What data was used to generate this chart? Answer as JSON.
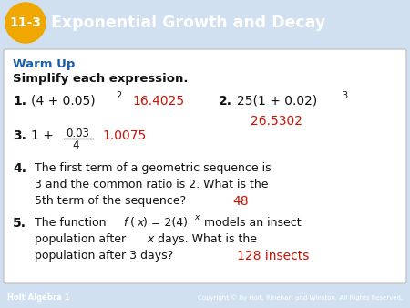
{
  "title_text": "Exponential Growth and Decay",
  "title_number": "11-3",
  "header_bg_color": "#3a7fc1",
  "title_number_bg": "#f0a800",
  "warm_up_color": "#1a5fa8",
  "answer_color": "#cc1100",
  "body_bg_color": "#d0e0f0",
  "footer_bg_color": "#3a6a9a",
  "footer_text_left": "Holt Algebra 1",
  "footer_text_right": "Copyright © by Holt, Rinehart and Winston. All Rights Reserved.",
  "warm_up_label": "Warm Up",
  "subtitle": "Simplify each expression."
}
